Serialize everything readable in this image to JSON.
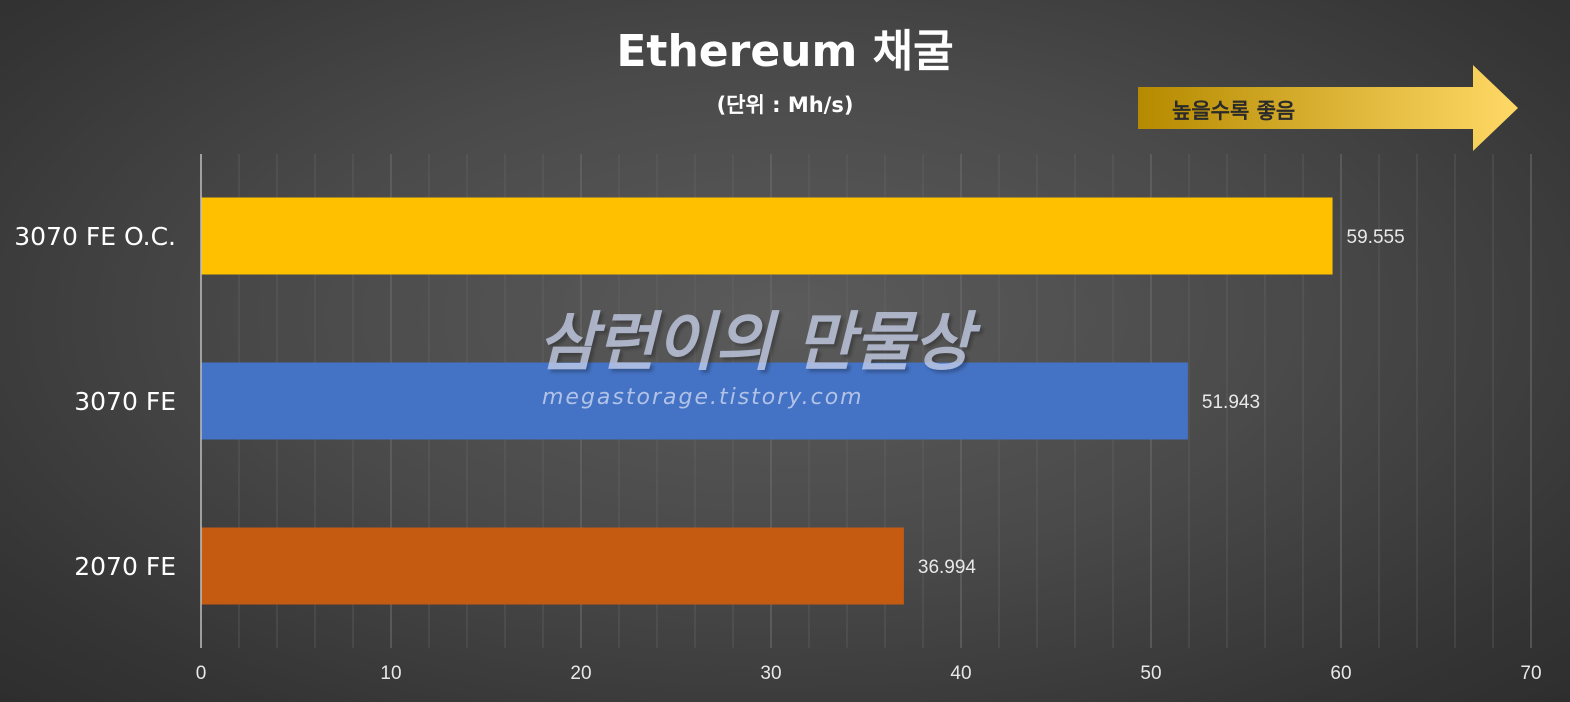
{
  "chart_data": {
    "type": "bar",
    "orientation": "horizontal",
    "title": "Ethereum 채굴",
    "subtitle": "(단위 : Mh/s)",
    "categories": [
      "3070 FE O.C.",
      "3070 FE",
      "2070 FE"
    ],
    "values": [
      59.555,
      51.943,
      36.994
    ],
    "value_labels": [
      "59.555",
      "51.943",
      "36.994"
    ],
    "bar_colors": [
      "#ffc000",
      "#4472c4",
      "#c55a11"
    ],
    "xlim": [
      0,
      70
    ],
    "x_ticks": [
      0,
      10,
      20,
      30,
      40,
      50,
      60,
      70
    ],
    "x_tick_labels": [
      "0",
      "10",
      "20",
      "30",
      "40",
      "50",
      "60",
      "70"
    ],
    "grid": true,
    "grid_minor_step": 2,
    "legend": "none",
    "annotation": "높을수록 좋음"
  },
  "watermark": {
    "main": "삼런이의 만물상",
    "sub": "megastorage.tistory.com"
  },
  "colors": {
    "gridline": "#6a6a6a",
    "axis": "#bfbfbf",
    "arrow_start": "#b58a00",
    "arrow_end": "#ffd966"
  }
}
